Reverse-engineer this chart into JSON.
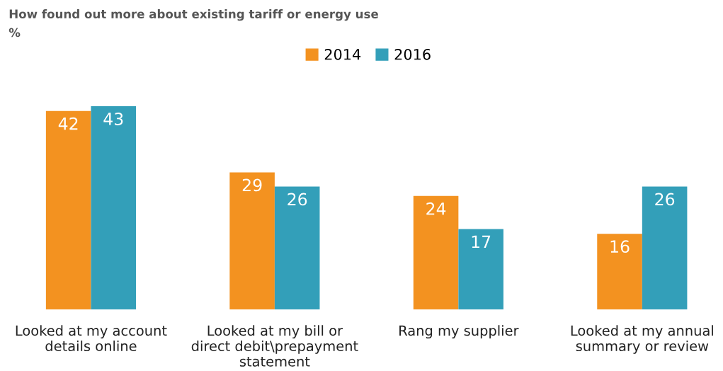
{
  "chart_data": {
    "type": "bar",
    "title": "How found out more about existing tariff or energy use",
    "subtitle": "%",
    "categories": [
      "Looked at my account\ndetails online",
      "Looked at my bill or\ndirect debit\\prepayment\nstatement",
      "Rang my supplier",
      "Looked at my annual\nsummary or review"
    ],
    "series": [
      {
        "name": "2014",
        "color": "#f39220",
        "values": [
          42,
          29,
          24,
          16
        ]
      },
      {
        "name": "2016",
        "color": "#339fb9",
        "values": [
          43,
          26,
          17,
          26
        ]
      }
    ],
    "data_labels": true,
    "legend": "top",
    "grid": false
  }
}
